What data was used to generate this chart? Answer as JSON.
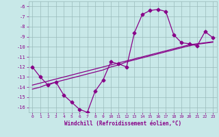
{
  "xlabel": "Windchill (Refroidissement éolien,°C)",
  "x_values": [
    0,
    1,
    2,
    3,
    4,
    5,
    6,
    7,
    8,
    9,
    10,
    11,
    12,
    13,
    14,
    15,
    16,
    17,
    18,
    19,
    20,
    21,
    22,
    23
  ],
  "y_main": [
    -12,
    -13,
    -13.8,
    -13.5,
    -14.8,
    -15.5,
    -16.2,
    -16.5,
    -14.4,
    -13.3,
    -11.5,
    -11.7,
    -12.0,
    -8.6,
    -6.8,
    -6.4,
    -6.3,
    -6.5,
    -8.8,
    -9.6,
    -9.7,
    -9.9,
    -8.5,
    -9.1
  ],
  "y_reg1": [
    -13.8,
    -13.6,
    -13.4,
    -13.2,
    -13.0,
    -12.8,
    -12.6,
    -12.4,
    -12.2,
    -12.0,
    -11.8,
    -11.6,
    -11.4,
    -11.2,
    -11.0,
    -10.8,
    -10.6,
    -10.4,
    -10.2,
    -10.0,
    -9.8,
    -9.7,
    -9.6,
    -9.5
  ],
  "y_reg2": [
    -14.2,
    -14.0,
    -13.7,
    -13.5,
    -13.3,
    -13.1,
    -12.9,
    -12.7,
    -12.5,
    -12.3,
    -12.0,
    -11.8,
    -11.5,
    -11.3,
    -11.1,
    -10.9,
    -10.7,
    -10.5,
    -10.3,
    -10.1,
    -9.9,
    -9.75,
    -9.65,
    -9.55
  ],
  "line_color": "#880088",
  "bg_color": "#c8e8e8",
  "grid_color": "#99bbbb",
  "marker": "D",
  "marker_size": 2.5,
  "ylim": [
    -16.5,
    -5.5
  ],
  "xlim": [
    -0.5,
    23.5
  ],
  "yticks": [
    -16,
    -15,
    -14,
    -13,
    -12,
    -11,
    -10,
    -9,
    -8,
    -7,
    -6
  ],
  "xticks": [
    0,
    1,
    2,
    3,
    4,
    5,
    6,
    7,
    8,
    9,
    10,
    11,
    12,
    13,
    14,
    15,
    16,
    17,
    18,
    19,
    20,
    21,
    22,
    23
  ]
}
